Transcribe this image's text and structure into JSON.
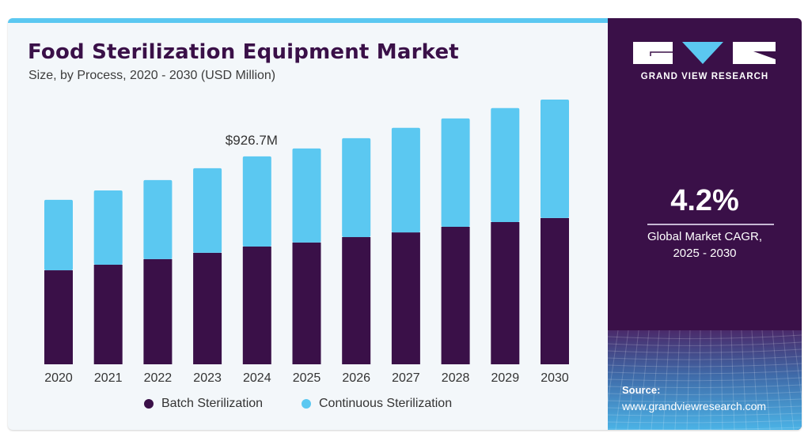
{
  "header": {
    "title": "Food Sterilization Equipment Market",
    "subtitle": "Size, by Process, 2020 - 2030 (USD Million)"
  },
  "brand": {
    "name": "GRAND VIEW RESEARCH"
  },
  "stat": {
    "value": "4.2%",
    "label_line1": "Global Market CAGR,",
    "label_line2": "2025 - 2030"
  },
  "source": {
    "label": "Source:",
    "url": "www.grandviewresearch.com"
  },
  "colors": {
    "batch": "#3a1048",
    "continuous": "#5bc8f1",
    "accent": "#5bc8f1",
    "panel": "#3a1048"
  },
  "chart_data": {
    "type": "bar",
    "stacked": true,
    "title": "Food Sterilization Equipment Market",
    "subtitle": "Size, by Process, 2020 - 2030 (USD Million)",
    "xlabel": "",
    "ylabel": "",
    "categories": [
      "2020",
      "2021",
      "2022",
      "2023",
      "2024",
      "2025",
      "2026",
      "2027",
      "2028",
      "2029",
      "2030"
    ],
    "series": [
      {
        "name": "Batch Sterilization",
        "values": [
          419,
          444,
          469,
          497,
          525,
          543,
          567,
          588,
          613,
          634,
          652
        ]
      },
      {
        "name": "Continuous Sterilization",
        "values": [
          314,
          331,
          352,
          377,
          401.7,
          419,
          441,
          466,
          483,
          508,
          528
        ]
      }
    ],
    "annotations": [
      {
        "category": "2024",
        "text": "$926.7M"
      }
    ],
    "ylim": [
      0,
      1180
    ],
    "grid": false,
    "legend": "bottom-center"
  }
}
